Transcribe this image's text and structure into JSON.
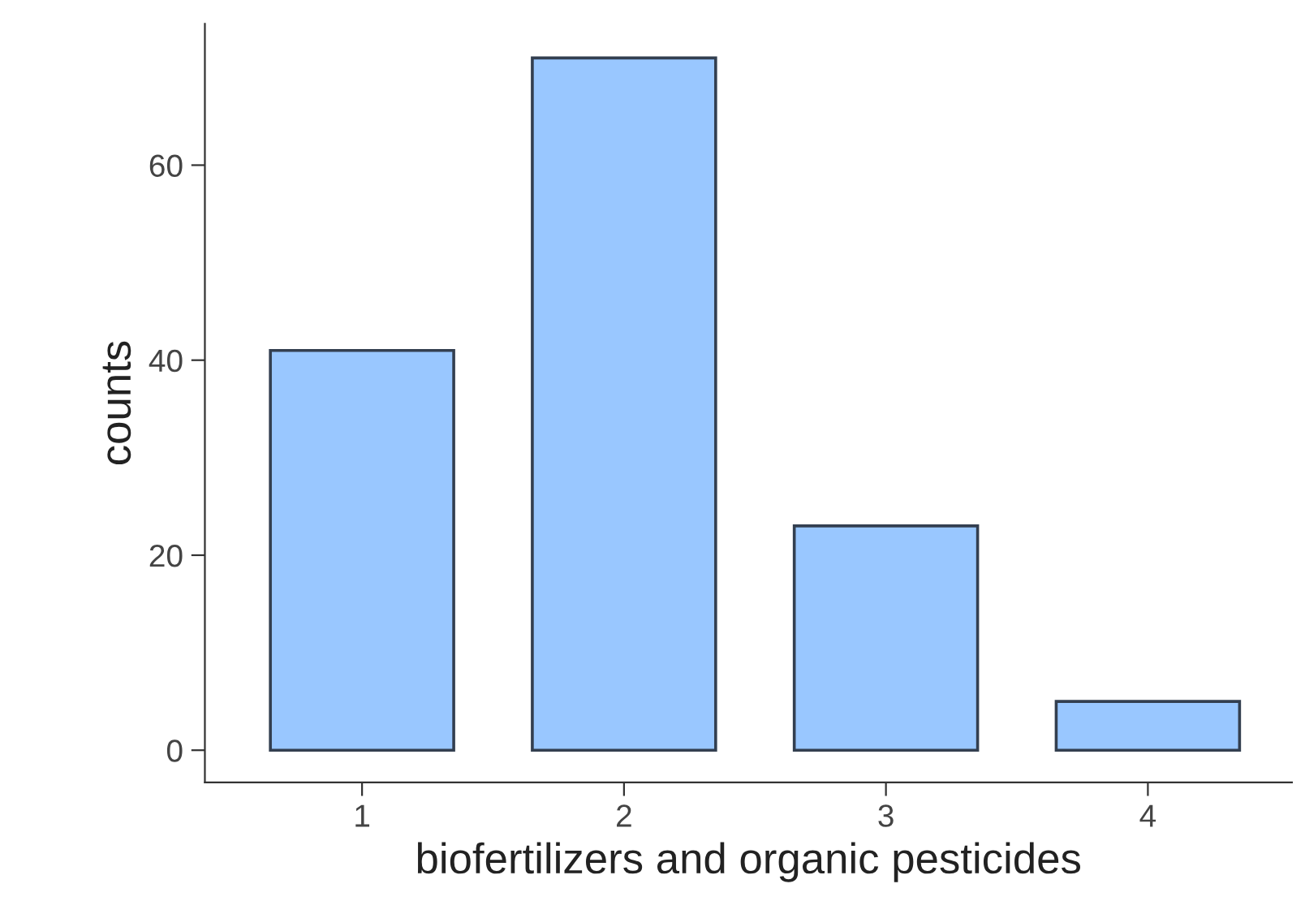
{
  "chart_data": {
    "type": "bar",
    "xlabel": "biofertilizers and organic pesticides",
    "ylabel": "counts",
    "categories": [
      "1",
      "2",
      "3",
      "4"
    ],
    "values": [
      41,
      71,
      23,
      5
    ],
    "color": "#99c7ff",
    "ylim": [
      -3.3,
      74.5
    ],
    "yticks": [
      0,
      20,
      40,
      60
    ],
    "grid": false,
    "legend": false
  }
}
